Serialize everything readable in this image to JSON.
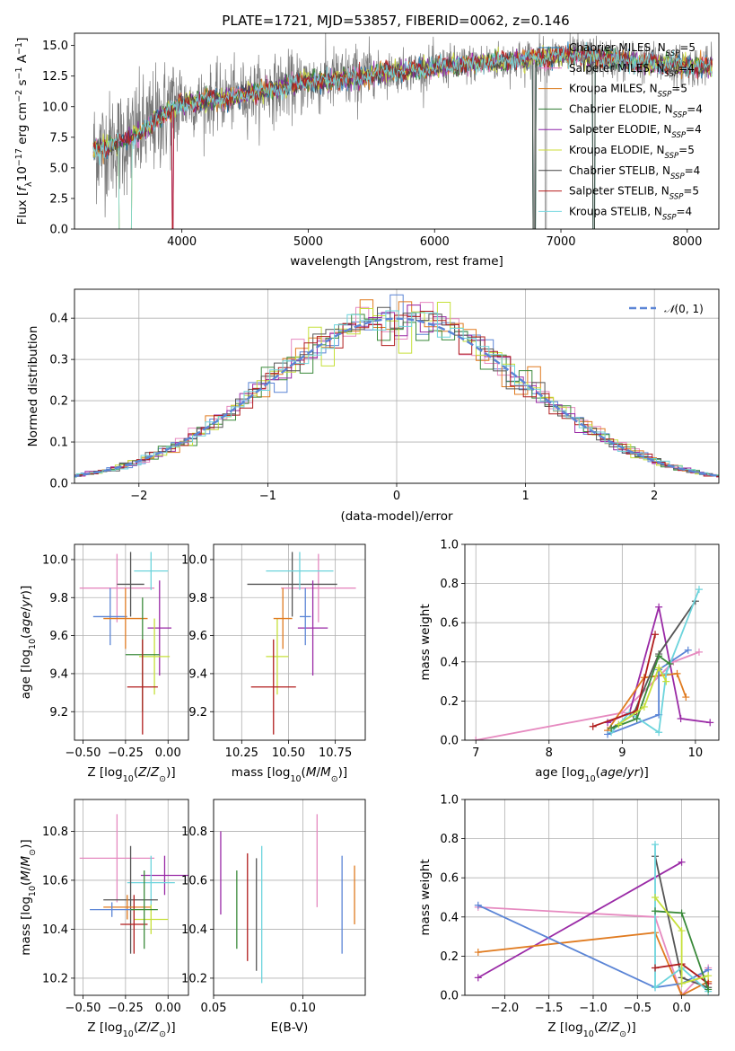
{
  "figure_title": "PLATE=1721, MJD=53857, FIBERID=0062, z=0.146",
  "colors": {
    "chabrier_miles": "#1f77b4",
    "salpeter_miles": "#e377c2",
    "kroupa_miles": "#d97a1a",
    "chabrier_elodie": "#2e7d32",
    "salpeter_elodie": "#8e24aa",
    "kroupa_elodie": "#cddc39",
    "chabrier_stelib": "#444444",
    "salpeter_stelib": "#b71c1c",
    "kroupa_stelib": "#76d7e0",
    "blue": "#5b85d6",
    "orange": "#e07b20",
    "pink": "#e68ac0",
    "purple": "#9a2aa6",
    "green": "#3a8a3a",
    "lime": "#c6e03a",
    "grey": "#555555",
    "red": "#b01c1c",
    "cyan": "#6cd4dc",
    "data": "#777777"
  },
  "chart_data": [
    {
      "id": "spectrum",
      "type": "line",
      "title": "PLATE=1721, MJD=53857, FIBERID=0062, z=0.146",
      "xlabel": "wavelength [Angstrom, rest frame]",
      "ylabel": "Flux [f_λ 10^-17 erg cm^-2 s^-1 A^-1]",
      "xlim": [
        3150,
        8250
      ],
      "ylim": [
        0,
        16
      ],
      "xticks": [
        4000,
        5000,
        6000,
        7000,
        8000
      ],
      "yticks": [
        0.0,
        2.5,
        5.0,
        7.5,
        10.0,
        12.5,
        15.0
      ],
      "grid": false,
      "legend_position": "top-right",
      "legend": [
        "Chabrier MILES, N_SSP=5",
        "Salpeter MILES, N_SSP=4",
        "Kroupa MILES, N_SSP=5",
        "Chabrier ELODIE, N_SSP=4",
        "Salpeter ELODIE, N_SSP=4",
        "Kroupa ELODIE, N_SSP=5",
        "Chabrier STELIB, N_SSP=4",
        "Salpeter STELIB, N_SSP=5",
        "Kroupa STELIB, N_SSP=4"
      ],
      "continuum": [
        [
          3300,
          6.5
        ],
        [
          3500,
          7.0
        ],
        [
          3700,
          8.0
        ],
        [
          3900,
          9.8
        ],
        [
          4000,
          10.2
        ],
        [
          4200,
          10.5
        ],
        [
          4400,
          10.8
        ],
        [
          4600,
          11.2
        ],
        [
          4800,
          11.6
        ],
        [
          5000,
          12.0
        ],
        [
          5200,
          12.2
        ],
        [
          5400,
          12.4
        ],
        [
          5600,
          12.8
        ],
        [
          5800,
          13.0
        ],
        [
          6000,
          13.2
        ],
        [
          6200,
          13.4
        ],
        [
          6400,
          13.6
        ],
        [
          6600,
          13.7
        ],
        [
          6800,
          14.0
        ],
        [
          7000,
          14.1
        ],
        [
          7200,
          14.1
        ],
        [
          7400,
          13.9
        ],
        [
          7600,
          13.6
        ],
        [
          7800,
          13.5
        ],
        [
          8000,
          13.3
        ],
        [
          8200,
          13.2
        ]
      ]
    },
    {
      "id": "residuals",
      "type": "histogram",
      "xlabel": "(data-model)/error",
      "ylabel": "Normed distribution",
      "xlim": [
        -2.5,
        2.5
      ],
      "ylim": [
        0,
        0.47
      ],
      "xticks": [
        -2,
        -1,
        0,
        1,
        2
      ],
      "yticks": [
        0.0,
        0.1,
        0.2,
        0.3,
        0.4
      ],
      "grid": true,
      "legend_position": "top-right",
      "legend": [
        "N(0,1)"
      ],
      "bin_width": 0.1
    },
    {
      "id": "age_vs_Z",
      "type": "errorbar",
      "xlabel": "Z [log10(Z/Z⊙)]",
      "ylabel": "age  [log10(age/yr)]",
      "xlim": [
        -0.55,
        0.12
      ],
      "ylim": [
        9.05,
        10.08
      ],
      "xticks": [
        -0.5,
        -0.25,
        0.0
      ],
      "xtick_labels": [
        "−0.50",
        "−0.25",
        "0.00"
      ],
      "yticks": [
        9.2,
        9.4,
        9.6,
        9.8,
        10.0
      ],
      "grid": true,
      "points": [
        {
          "c": "pink",
          "x": -0.3,
          "xe": 0.22,
          "y": 9.85,
          "ye": 0.18
        },
        {
          "c": "grey",
          "x": -0.22,
          "xe": 0.08,
          "y": 9.87,
          "ye": 0.17
        },
        {
          "c": "cyan",
          "x": -0.1,
          "xe": 0.1,
          "y": 9.94,
          "ye": 0.1
        },
        {
          "c": "blue",
          "x": -0.34,
          "xe": 0.1,
          "y": 9.7,
          "ye": 0.15
        },
        {
          "c": "orange",
          "x": -0.25,
          "xe": 0.13,
          "y": 9.69,
          "ye": 0.16
        },
        {
          "c": "purple",
          "x": -0.05,
          "xe": 0.07,
          "y": 9.64,
          "ye": 0.25
        },
        {
          "c": "lime",
          "x": -0.08,
          "xe": 0.09,
          "y": 9.49,
          "ye": 0.2
        },
        {
          "c": "green",
          "x": -0.15,
          "xe": 0.1,
          "y": 9.5,
          "ye": 0.3
        },
        {
          "c": "red",
          "x": -0.15,
          "xe": 0.09,
          "y": 9.33,
          "ye": 0.25
        }
      ]
    },
    {
      "id": "age_vs_mass",
      "type": "errorbar",
      "xlabel": "mass [log10(M/M⊙)]",
      "ylabel": "",
      "xlim": [
        10.1,
        10.91
      ],
      "ylim": [
        9.05,
        10.08
      ],
      "xticks": [
        10.25,
        10.5,
        10.75
      ],
      "yticks": [
        9.2,
        9.4,
        9.6,
        9.8,
        10.0
      ],
      "grid": true,
      "points": [
        {
          "c": "pink",
          "x": 10.66,
          "xe": 0.2,
          "y": 9.85,
          "ye": 0.18
        },
        {
          "c": "grey",
          "x": 10.52,
          "xe": 0.24,
          "y": 9.87,
          "ye": 0.17
        },
        {
          "c": "cyan",
          "x": 10.56,
          "xe": 0.18,
          "y": 9.94,
          "ye": 0.1
        },
        {
          "c": "purple",
          "x": 10.63,
          "xe": 0.08,
          "y": 9.64,
          "ye": 0.25
        },
        {
          "c": "lime",
          "x": 10.44,
          "xe": 0.06,
          "y": 9.49,
          "ye": 0.2
        },
        {
          "c": "red",
          "x": 10.42,
          "xe": 0.12,
          "y": 9.33,
          "ye": 0.25
        },
        {
          "c": "orange",
          "x": 10.47,
          "xe": 0.05,
          "y": 9.69,
          "ye": 0.16
        },
        {
          "c": "blue",
          "x": 10.59,
          "xe": 0.03,
          "y": 9.7,
          "ye": 0.15
        }
      ]
    },
    {
      "id": "weight_vs_age",
      "type": "line",
      "xlabel": "age  [log10(age/yr)]",
      "ylabel": "mass weight",
      "xlim": [
        6.85,
        10.32
      ],
      "ylim": [
        0,
        1
      ],
      "xticks": [
        7,
        8,
        9,
        10
      ],
      "yticks": [
        0.0,
        0.2,
        0.4,
        0.6,
        0.8,
        1.0
      ],
      "grid": true,
      "series": [
        {
          "c": "pink",
          "points": [
            [
              7.0,
              0.0
            ],
            [
              9.0,
              0.14
            ],
            [
              9.7,
              0.4
            ],
            [
              10.05,
              0.45
            ]
          ]
        },
        {
          "c": "purple",
          "points": [
            [
              8.8,
              0.09
            ],
            [
              9.1,
              0.14
            ],
            [
              9.5,
              0.68
            ],
            [
              9.8,
              0.11
            ],
            [
              10.2,
              0.09
            ]
          ]
        },
        {
          "c": "orange",
          "points": [
            [
              8.8,
              0.05
            ],
            [
              9.3,
              0.32
            ],
            [
              9.75,
              0.34
            ],
            [
              9.87,
              0.22
            ]
          ]
        },
        {
          "c": "blue",
          "points": [
            [
              8.8,
              0.03
            ],
            [
              9.5,
              0.13
            ],
            [
              9.5,
              0.36
            ],
            [
              9.9,
              0.46
            ]
          ]
        },
        {
          "c": "grey",
          "points": [
            [
              8.85,
              0.06
            ],
            [
              9.15,
              0.13
            ],
            [
              9.5,
              0.44
            ],
            [
              10.0,
              0.71
            ]
          ]
        },
        {
          "c": "cyan",
          "points": [
            [
              8.85,
              0.04
            ],
            [
              9.1,
              0.14
            ],
            [
              9.5,
              0.04
            ],
            [
              9.6,
              0.34
            ],
            [
              10.05,
              0.77
            ]
          ]
        },
        {
          "c": "red",
          "points": [
            [
              8.6,
              0.07
            ],
            [
              9.2,
              0.15
            ],
            [
              9.45,
              0.54
            ]
          ]
        },
        {
          "c": "green",
          "points": [
            [
              8.85,
              0.06
            ],
            [
              9.2,
              0.11
            ],
            [
              9.5,
              0.43
            ],
            [
              9.65,
              0.39
            ]
          ]
        },
        {
          "c": "lime",
          "points": [
            [
              8.95,
              0.08
            ],
            [
              9.3,
              0.17
            ],
            [
              9.5,
              0.37
            ],
            [
              9.6,
              0.3
            ]
          ]
        }
      ]
    },
    {
      "id": "mass_vs_Z",
      "type": "errorbar",
      "xlabel": "Z [log10(Z/Z⊙)]",
      "ylabel": "mass [log10(M/M⊙)]",
      "xlim": [
        -0.55,
        0.12
      ],
      "ylim": [
        10.13,
        10.93
      ],
      "xticks": [
        -0.5,
        -0.25,
        0.0
      ],
      "xtick_labels": [
        "−0.50",
        "−0.25",
        "0.00"
      ],
      "yticks": [
        10.2,
        10.4,
        10.6,
        10.8
      ],
      "grid": true,
      "points": [
        {
          "c": "pink",
          "x": -0.3,
          "xe": 0.22,
          "y": 10.69,
          "ye": 0.18
        },
        {
          "c": "purple",
          "x": -0.02,
          "xe": 0.14,
          "y": 10.62,
          "ye": 0.08
        },
        {
          "c": "cyan",
          "x": -0.1,
          "xe": 0.14,
          "y": 10.59,
          "ye": 0.11
        },
        {
          "c": "grey",
          "x": -0.22,
          "xe": 0.16,
          "y": 10.52,
          "ye": 0.22
        },
        {
          "c": "orange",
          "x": -0.24,
          "xe": 0.14,
          "y": 10.49,
          "ye": 0.05
        },
        {
          "c": "blue",
          "x": -0.33,
          "xe": 0.13,
          "y": 10.48,
          "ye": 0.03
        },
        {
          "c": "lime",
          "x": -0.1,
          "xe": 0.1,
          "y": 10.44,
          "ye": 0.06
        },
        {
          "c": "red",
          "x": -0.2,
          "xe": 0.08,
          "y": 10.42,
          "ye": 0.12
        },
        {
          "c": "green",
          "x": -0.14,
          "xe": 0.08,
          "y": 10.48,
          "ye": 0.16
        }
      ]
    },
    {
      "id": "mass_vs_ebv",
      "type": "errorbar",
      "xlabel": "E(B-V)",
      "ylabel": "",
      "xlim": [
        0.05,
        0.135
      ],
      "ylim": [
        10.13,
        10.93
      ],
      "xticks": [
        0.05,
        0.1
      ],
      "yticks": [
        10.2,
        10.4,
        10.6,
        10.8
      ],
      "grid": true,
      "points": [
        {
          "c": "purple",
          "x": 0.054,
          "y": 10.63,
          "ye": 0.17
        },
        {
          "c": "green",
          "x": 0.063,
          "y": 10.48,
          "ye": 0.16
        },
        {
          "c": "red",
          "x": 0.069,
          "y": 10.49,
          "ye": 0.22
        },
        {
          "c": "grey",
          "x": 0.074,
          "y": 10.46,
          "ye": 0.23
        },
        {
          "c": "cyan",
          "x": 0.077,
          "y": 10.46,
          "ye": 0.28
        },
        {
          "c": "pink",
          "x": 0.108,
          "y": 10.68,
          "ye": 0.19
        },
        {
          "c": "blue",
          "x": 0.122,
          "y": 10.5,
          "ye": 0.2
        },
        {
          "c": "orange",
          "x": 0.129,
          "y": 10.54,
          "ye": 0.12
        }
      ]
    },
    {
      "id": "weight_vs_Z",
      "type": "line",
      "xlabel": "Z [log10(Z/Z⊙)]",
      "ylabel": "mass weight",
      "xlim": [
        -2.45,
        0.42
      ],
      "ylim": [
        0,
        1
      ],
      "xticks": [
        -2.0,
        -1.5,
        -1.0,
        -0.5,
        0.0
      ],
      "xtick_labels": [
        "−2.0",
        "−1.5",
        "−1.0",
        "−0.5",
        "0.0"
      ],
      "yticks": [
        0.0,
        0.2,
        0.4,
        0.6,
        0.8,
        1.0
      ],
      "grid": true,
      "series": [
        {
          "c": "pink",
          "points": [
            [
              -2.3,
              0.45
            ],
            [
              -0.3,
              0.4
            ],
            [
              0.0,
              0.0
            ],
            [
              0.3,
              0.14
            ]
          ]
        },
        {
          "c": "purple",
          "points": [
            [
              -2.3,
              0.09
            ],
            [
              0.0,
              0.68
            ]
          ]
        },
        {
          "c": "orange",
          "points": [
            [
              -2.3,
              0.22
            ],
            [
              -0.3,
              0.32
            ],
            [
              0.0,
              0.0
            ],
            [
              0.3,
              0.07
            ]
          ]
        },
        {
          "c": "blue",
          "points": [
            [
              -2.3,
              0.46
            ],
            [
              -0.3,
              0.04
            ],
            [
              0.0,
              0.06
            ],
            [
              0.3,
              0.13
            ]
          ]
        },
        {
          "c": "grey",
          "points": [
            [
              -0.3,
              0.71
            ],
            [
              0.0,
              0.09
            ],
            [
              0.3,
              0.04
            ]
          ]
        },
        {
          "c": "cyan",
          "points": [
            [
              -0.3,
              0.77
            ],
            [
              -0.3,
              0.04
            ],
            [
              0.0,
              0.14
            ],
            [
              0.3,
              0.02
            ]
          ]
        },
        {
          "c": "red",
          "points": [
            [
              -0.3,
              0.14
            ],
            [
              0.0,
              0.16
            ],
            [
              0.3,
              0.06
            ]
          ]
        },
        {
          "c": "green",
          "points": [
            [
              -0.3,
              0.43
            ],
            [
              0.0,
              0.42
            ],
            [
              0.3,
              0.03
            ]
          ]
        },
        {
          "c": "lime",
          "points": [
            [
              -0.3,
              0.5
            ],
            [
              0.0,
              0.33
            ],
            [
              0.0,
              0.06
            ],
            [
              0.3,
              0.1
            ]
          ]
        }
      ]
    }
  ]
}
